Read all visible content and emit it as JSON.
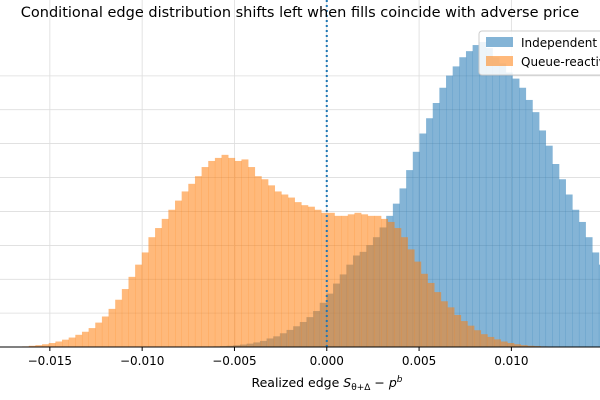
{
  "chart_data": {
    "type": "histogram",
    "title": "Conditional edge distribution shifts left when fills coincide with adverse price",
    "xlabel_prefix": "Realized edge ",
    "xlabel_math": "S_{θ+Δ} − p^b",
    "xlabel_parts": {
      "S": "S",
      "S_sub": "θ+Δ",
      "minus": " − ",
      "p": "p",
      "p_sup": "b"
    },
    "xlim": [
      -0.0177,
      0.0148
    ],
    "ylim": [
      0,
      1.0
    ],
    "yticks": [
      0,
      0.111,
      0.222,
      0.333,
      0.444,
      0.556,
      0.667,
      0.778,
      0.889
    ],
    "xticks": [
      -0.015,
      -0.01,
      -0.005,
      0.0,
      0.005,
      0.01
    ],
    "xtick_labels": [
      "−0.015",
      "−0.010",
      "−0.005",
      "0.000",
      "0.005",
      "0.010"
    ],
    "reference_line": {
      "x": 0.0,
      "style": "dotted",
      "color": "#1f77b4"
    },
    "grid": true,
    "bin_width": 0.00036,
    "series": [
      {
        "name": "Independent",
        "color": "#1f77b4",
        "alpha": 0.55,
        "bin_start": -0.0065,
        "density": [
          0.001,
          0.002,
          0.003,
          0.004,
          0.006,
          0.008,
          0.011,
          0.015,
          0.02,
          0.028,
          0.035,
          0.045,
          0.056,
          0.068,
          0.082,
          0.098,
          0.118,
          0.145,
          0.175,
          0.208,
          0.238,
          0.27,
          0.3,
          0.312,
          0.334,
          0.36,
          0.392,
          0.43,
          0.47,
          0.52,
          0.58,
          0.64,
          0.7,
          0.75,
          0.8,
          0.85,
          0.89,
          0.92,
          0.95,
          0.97,
          0.99,
          1.0,
          0.98,
          0.95,
          0.93,
          0.9,
          0.88,
          0.85,
          0.81,
          0.77,
          0.71,
          0.66,
          0.6,
          0.55,
          0.5,
          0.45,
          0.41,
          0.36,
          0.31,
          0.27,
          0.23,
          0.19,
          0.16,
          0.13,
          0.1,
          0.08,
          0.06,
          0.045,
          0.034,
          0.025,
          0.018,
          0.012,
          0.008,
          0.005,
          0.003,
          0.002
        ]
      },
      {
        "name": "Queue-reactive",
        "color": "#ff7f0e",
        "alpha": 0.55,
        "bin_start": -0.0165,
        "density": [
          0.002,
          0.004,
          0.006,
          0.009,
          0.013,
          0.018,
          0.024,
          0.031,
          0.04,
          0.05,
          0.062,
          0.08,
          0.1,
          0.125,
          0.155,
          0.19,
          0.23,
          0.27,
          0.31,
          0.36,
          0.39,
          0.42,
          0.45,
          0.48,
          0.51,
          0.535,
          0.56,
          0.59,
          0.61,
          0.62,
          0.63,
          0.62,
          0.61,
          0.615,
          0.59,
          0.56,
          0.55,
          0.53,
          0.51,
          0.5,
          0.49,
          0.475,
          0.465,
          0.46,
          0.45,
          0.44,
          0.44,
          0.43,
          0.43,
          0.435,
          0.44,
          0.435,
          0.43,
          0.43,
          0.42,
          0.41,
          0.39,
          0.36,
          0.32,
          0.28,
          0.24,
          0.21,
          0.18,
          0.15,
          0.13,
          0.105,
          0.085,
          0.07,
          0.055,
          0.042,
          0.033,
          0.025,
          0.018,
          0.013,
          0.009,
          0.006,
          0.004,
          0.003,
          0.002,
          0.001
        ]
      }
    ],
    "legend": {
      "position": "top-right",
      "entries": [
        "Independent",
        "Queue-reactive"
      ]
    }
  }
}
